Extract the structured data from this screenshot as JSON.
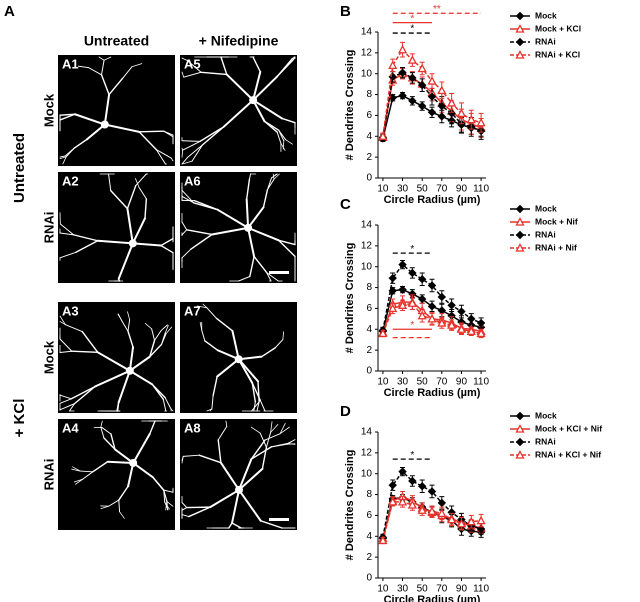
{
  "figure": {
    "panel": "A",
    "col_headers": [
      "Untreated",
      "+ Nifedipine"
    ],
    "group_labels": [
      "Untreated",
      "+ KCl"
    ],
    "images": [
      {
        "label": "A1",
        "row": "Mock"
      },
      {
        "label": "A5"
      },
      {
        "label": "A2",
        "row": "RNAi"
      },
      {
        "label": "A6"
      },
      {
        "label": "A3",
        "row": "Mock"
      },
      {
        "label": "A7"
      },
      {
        "label": "A4",
        "row": "RNAi"
      },
      {
        "label": "A8"
      }
    ]
  },
  "chart_data": [
    {
      "type": "line",
      "panel": "B",
      "ylabel": "# Dendrites Crossing",
      "xlabel": "Circle Radius (µm)",
      "x": [
        10,
        20,
        30,
        40,
        50,
        60,
        70,
        80,
        90,
        100,
        110
      ],
      "xlim": [
        5,
        115
      ],
      "xticks": [
        10,
        30,
        50,
        70,
        90,
        110
      ],
      "ylim": [
        0,
        14
      ],
      "yticks": [
        0,
        2,
        4,
        6,
        8,
        10,
        12,
        14
      ],
      "legend": "right",
      "series": [
        {
          "name": "Mock",
          "color": "#000000",
          "dash": false,
          "marker": "diamond",
          "values": [
            3.8,
            7.7,
            7.9,
            7.4,
            6.9,
            6.3,
            5.9,
            5.5,
            5.1,
            4.8,
            4.6
          ],
          "errors": [
            0.3,
            0.3,
            0.3,
            0.4,
            0.4,
            0.5,
            0.6,
            0.6,
            0.7,
            0.6,
            0.6
          ]
        },
        {
          "name": "Mock + KCl",
          "color": "#e8322b",
          "dash": false,
          "marker": "triangle",
          "values": [
            3.9,
            9.4,
            10.0,
            9.6,
            9.0,
            8.2,
            7.2,
            6.4,
            5.6,
            5.2,
            4.8
          ],
          "errors": [
            0.3,
            0.5,
            0.5,
            0.6,
            0.7,
            0.8,
            0.9,
            1.0,
            1.0,
            1.0,
            0.9
          ]
        },
        {
          "name": "RNAi",
          "color": "#000000",
          "dash": true,
          "marker": "diamond",
          "values": [
            3.9,
            9.7,
            10.1,
            9.6,
            8.9,
            7.8,
            6.9,
            6.2,
            5.2,
            4.9,
            4.5
          ],
          "errors": [
            0.3,
            0.5,
            0.5,
            0.5,
            0.6,
            0.8,
            0.9,
            1.0,
            0.9,
            0.9,
            0.8
          ]
        },
        {
          "name": "RNAi + KCl",
          "color": "#e8322b",
          "dash": true,
          "marker": "triangle",
          "values": [
            4.0,
            10.8,
            12.3,
            11.3,
            10.5,
            9.3,
            8.4,
            7.2,
            6.2,
            5.6,
            5.3
          ],
          "errors": [
            0.3,
            0.6,
            0.7,
            0.6,
            0.6,
            0.7,
            0.8,
            0.9,
            1.0,
            0.9,
            0.9
          ]
        }
      ],
      "annotations": [
        {
          "text": "**",
          "x": [
            20,
            110
          ],
          "y": 15.8,
          "color": "#e8322b",
          "dash": true
        },
        {
          "text": "*",
          "x": [
            20,
            60
          ],
          "y": 14.9,
          "color": "#e8322b",
          "dash": false
        },
        {
          "text": "*",
          "x": [
            20,
            60
          ],
          "y": 13.9,
          "color": "#000000",
          "dash": true
        }
      ]
    },
    {
      "type": "line",
      "panel": "C",
      "ylabel": "# Dendrites Crossing",
      "xlabel": "Circle Radius (µm)",
      "x": [
        10,
        20,
        30,
        40,
        50,
        60,
        70,
        80,
        90,
        100,
        110
      ],
      "xlim": [
        5,
        115
      ],
      "xticks": [
        10,
        30,
        50,
        70,
        90,
        110
      ],
      "ylim": [
        0,
        14
      ],
      "yticks": [
        0,
        2,
        4,
        6,
        8,
        10,
        12,
        14
      ],
      "legend": "right",
      "series": [
        {
          "name": "Mock",
          "color": "#000000",
          "dash": false,
          "marker": "diamond",
          "values": [
            3.8,
            7.7,
            7.8,
            7.4,
            6.9,
            6.2,
            5.8,
            5.3,
            4.7,
            4.4,
            4.2
          ],
          "errors": [
            0.3,
            0.3,
            0.3,
            0.4,
            0.4,
            0.5,
            0.6,
            0.6,
            0.6,
            0.5,
            0.5
          ]
        },
        {
          "name": "Mock + Nif",
          "color": "#e8322b",
          "dash": false,
          "marker": "triangle",
          "values": [
            3.7,
            6.4,
            6.6,
            6.6,
            5.8,
            5.0,
            4.9,
            4.6,
            4.1,
            4.0,
            3.8
          ],
          "errors": [
            0.3,
            0.5,
            0.6,
            0.7,
            0.7,
            0.6,
            0.6,
            0.6,
            0.5,
            0.5,
            0.5
          ]
        },
        {
          "name": "RNAi",
          "color": "#000000",
          "dash": true,
          "marker": "diamond",
          "values": [
            3.9,
            8.9,
            10.2,
            9.4,
            8.8,
            8.2,
            7.1,
            6.3,
            5.7,
            5.0,
            4.6
          ],
          "errors": [
            0.3,
            0.5,
            0.4,
            0.5,
            0.6,
            0.6,
            0.6,
            0.6,
            0.6,
            0.5,
            0.5
          ]
        },
        {
          "name": "RNAi + Nif",
          "color": "#e8322b",
          "dash": true,
          "marker": "triangle",
          "values": [
            3.6,
            6.0,
            6.3,
            6.5,
            5.3,
            5.0,
            4.6,
            4.4,
            4.0,
            3.8,
            3.6
          ],
          "errors": [
            0.3,
            0.5,
            0.5,
            0.6,
            0.6,
            0.5,
            0.5,
            0.5,
            0.5,
            0.4,
            0.4
          ]
        }
      ],
      "annotations": [
        {
          "text": "*",
          "x": [
            20,
            60
          ],
          "y": 11.3,
          "color": "#000000",
          "dash": true
        },
        {
          "text": "*",
          "x": [
            20,
            60
          ],
          "y": 4.0,
          "color": "#e8322b",
          "dash": false
        },
        {
          "x": [
            20,
            60
          ],
          "y": 3.2,
          "color": "#e8322b",
          "dash": true
        }
      ]
    },
    {
      "type": "line",
      "panel": "D",
      "ylabel": "# Dendrites Crossing",
      "xlabel": "Circle Radius (µm)",
      "x": [
        10,
        20,
        30,
        40,
        50,
        60,
        70,
        80,
        90,
        100,
        110
      ],
      "xlim": [
        5,
        115
      ],
      "xticks": [
        10,
        30,
        50,
        70,
        90,
        110
      ],
      "ylim": [
        0,
        14
      ],
      "yticks": [
        0,
        2,
        4,
        6,
        8,
        10,
        12,
        14
      ],
      "legend": "right",
      "series": [
        {
          "name": "Mock",
          "color": "#000000",
          "dash": false,
          "marker": "diamond",
          "values": [
            3.8,
            7.6,
            7.7,
            7.3,
            6.8,
            6.3,
            5.9,
            5.5,
            4.7,
            4.5,
            4.4
          ],
          "errors": [
            0.3,
            0.3,
            0.3,
            0.4,
            0.4,
            0.5,
            0.6,
            0.6,
            0.6,
            0.5,
            0.5
          ]
        },
        {
          "name": "Mock + KCl + Nif",
          "color": "#e8322b",
          "dash": false,
          "marker": "triangle",
          "values": [
            3.8,
            7.4,
            7.8,
            7.4,
            6.7,
            6.3,
            6.0,
            5.7,
            5.3,
            5.0,
            4.8
          ],
          "errors": [
            0.3,
            0.4,
            0.5,
            0.5,
            0.5,
            0.5,
            0.6,
            0.6,
            0.6,
            0.6,
            0.5
          ]
        },
        {
          "name": "RNAi",
          "color": "#000000",
          "dash": true,
          "marker": "diamond",
          "values": [
            3.9,
            8.9,
            10.2,
            9.3,
            8.8,
            8.3,
            7.2,
            6.3,
            5.6,
            5.0,
            4.7
          ],
          "errors": [
            0.3,
            0.5,
            0.4,
            0.5,
            0.6,
            0.6,
            0.6,
            0.6,
            0.6,
            0.5,
            0.5
          ]
        },
        {
          "name": "RNAi + KCl + Nif",
          "color": "#e8322b",
          "dash": true,
          "marker": "triangle",
          "values": [
            3.6,
            7.3,
            7.3,
            7.0,
            6.5,
            6.4,
            6.2,
            5.6,
            5.2,
            5.4,
            5.5
          ],
          "errors": [
            0.3,
            0.4,
            0.5,
            0.5,
            0.5,
            0.5,
            0.6,
            0.6,
            0.6,
            0.6,
            0.6
          ]
        }
      ],
      "annotations": [
        {
          "text": "*",
          "x": [
            20,
            60
          ],
          "y": 11.4,
          "color": "#000000",
          "dash": true
        }
      ]
    }
  ]
}
